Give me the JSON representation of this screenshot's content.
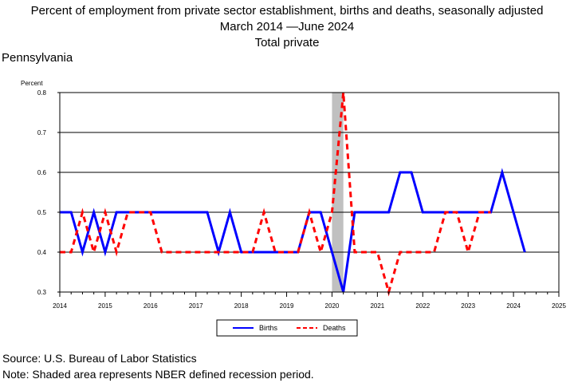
{
  "header": {
    "title": "Percent of employment from private sector establishment, births and deaths, seasonally adjusted",
    "date_range": "March 2014 —June 2024",
    "subtitle": "Total private"
  },
  "region": "Pennsylvania",
  "footer": {
    "source": "Source: U.S. Bureau of Labor Statistics",
    "note": "Note: Shaded area represents NBER defined recession period."
  },
  "chart_data": {
    "type": "line",
    "ylabel": "Percent",
    "xlim": [
      2014,
      2025
    ],
    "ylim": [
      0.3,
      0.8
    ],
    "yticks": [
      "0.3",
      "0.4",
      "0.5",
      "0.6",
      "0.7",
      "0.8"
    ],
    "xticks": [
      "2014",
      "2015",
      "2016",
      "2017",
      "2018",
      "2019",
      "2020",
      "2021",
      "2022",
      "2023",
      "2024",
      "2025"
    ],
    "grid": "horizontal",
    "legend_position": "bottom",
    "recession": {
      "start": 2020.0,
      "end": 2020.25
    },
    "colors": {
      "births": "#0000ff",
      "deaths": "#ff0000",
      "recession": "#c0c0c0"
    },
    "series": [
      {
        "name": "Births",
        "style": "solid",
        "x": [
          2014.0,
          2014.25,
          2014.5,
          2014.75,
          2015.0,
          2015.25,
          2015.5,
          2015.75,
          2016.0,
          2016.25,
          2016.5,
          2016.75,
          2017.0,
          2017.25,
          2017.5,
          2017.75,
          2018.0,
          2018.25,
          2018.5,
          2018.75,
          2019.0,
          2019.25,
          2019.5,
          2019.75,
          2020.0,
          2020.25,
          2020.5,
          2020.75,
          2021.0,
          2021.25,
          2021.5,
          2021.75,
          2022.0,
          2022.25,
          2022.5,
          2022.75,
          2023.0,
          2023.25,
          2023.5,
          2023.75,
          2024.0,
          2024.25
        ],
        "values": [
          0.5,
          0.5,
          0.4,
          0.5,
          0.4,
          0.5,
          0.5,
          0.5,
          0.5,
          0.5,
          0.5,
          0.5,
          0.5,
          0.5,
          0.4,
          0.5,
          0.4,
          0.4,
          0.4,
          0.4,
          0.4,
          0.4,
          0.5,
          0.5,
          0.4,
          0.3,
          0.5,
          0.5,
          0.5,
          0.5,
          0.6,
          0.6,
          0.5,
          0.5,
          0.5,
          0.5,
          0.5,
          0.5,
          0.5,
          0.6,
          0.5,
          0.4
        ]
      },
      {
        "name": "Deaths",
        "style": "dashed",
        "x": [
          2014.0,
          2014.25,
          2014.5,
          2014.75,
          2015.0,
          2015.25,
          2015.5,
          2015.75,
          2016.0,
          2016.25,
          2016.5,
          2016.75,
          2017.0,
          2017.25,
          2017.5,
          2017.75,
          2018.0,
          2018.25,
          2018.5,
          2018.75,
          2019.0,
          2019.25,
          2019.5,
          2019.75,
          2020.0,
          2020.25,
          2020.5,
          2020.75,
          2021.0,
          2021.25,
          2021.5,
          2021.75,
          2022.0,
          2022.25,
          2022.5,
          2022.75,
          2023.0,
          2023.25,
          2023.5
        ],
        "values": [
          0.4,
          0.4,
          0.5,
          0.4,
          0.5,
          0.4,
          0.5,
          0.5,
          0.5,
          0.4,
          0.4,
          0.4,
          0.4,
          0.4,
          0.4,
          0.4,
          0.4,
          0.4,
          0.5,
          0.4,
          0.4,
          0.4,
          0.5,
          0.4,
          0.5,
          0.8,
          0.4,
          0.4,
          0.4,
          0.3,
          0.4,
          0.4,
          0.4,
          0.4,
          0.5,
          0.5,
          0.4,
          0.5,
          0.5
        ]
      }
    ]
  }
}
